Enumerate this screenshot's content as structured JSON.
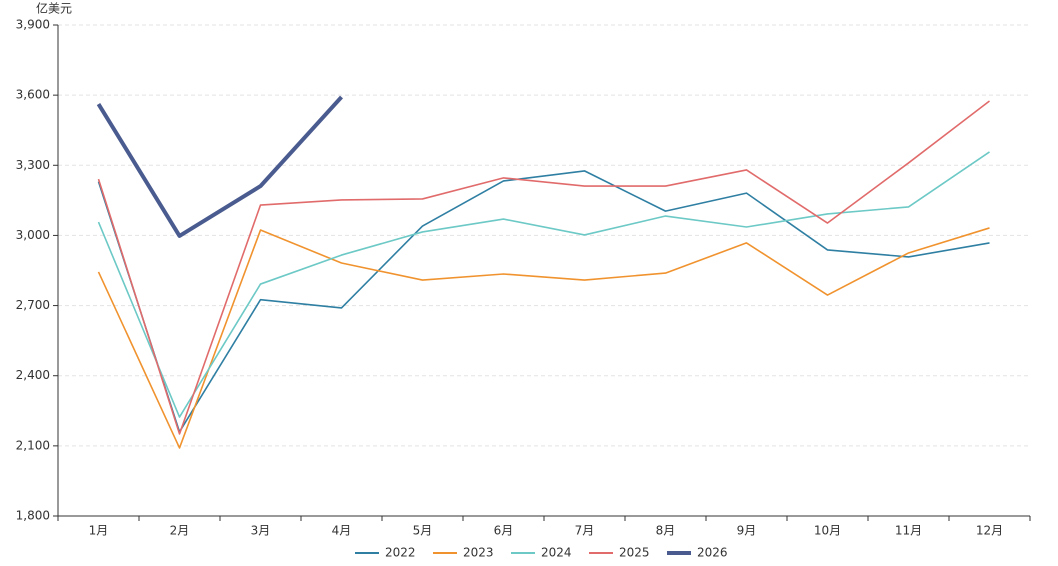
{
  "chart_data": {
    "type": "line",
    "y_unit": "亿美元",
    "categories": [
      "1月",
      "2月",
      "3月",
      "4月",
      "5月",
      "6月",
      "7月",
      "8月",
      "9月",
      "10月",
      "11月",
      "12月"
    ],
    "ylim": [
      1800,
      3900
    ],
    "yticks": [
      {
        "value": 1800,
        "label": "1,800"
      },
      {
        "value": 2100,
        "label": "2,100"
      },
      {
        "value": 2400,
        "label": "2,400"
      },
      {
        "value": 2700,
        "label": "2,700"
      },
      {
        "value": 3000,
        "label": "3,000"
      },
      {
        "value": 3300,
        "label": "3,300"
      },
      {
        "value": 3600,
        "label": "3,600"
      },
      {
        "value": 3900,
        "label": "3,900"
      }
    ],
    "grid": true,
    "series": [
      {
        "name": "2022",
        "color": "#2f7fa3",
        "values": [
          3230,
          2160,
          2725,
          2690,
          3040,
          3233,
          3276,
          3104,
          3181,
          2938,
          2908,
          2968
        ]
      },
      {
        "name": "2023",
        "color": "#f0932f",
        "values": [
          2844,
          2091,
          3023,
          2882,
          2809,
          2835,
          2809,
          2839,
          2968,
          2745,
          2925,
          3032
        ]
      },
      {
        "name": "2024",
        "color": "#6cc9c6",
        "values": [
          3057,
          2223,
          2792,
          2916,
          3015,
          3070,
          3002,
          3083,
          3036,
          3092,
          3122,
          3357
        ]
      },
      {
        "name": "2025",
        "color": "#e16b6b",
        "values": [
          3241,
          2151,
          3130,
          3152,
          3156,
          3246,
          3211,
          3211,
          3280,
          3053,
          3310,
          3575
        ]
      },
      {
        "name": "2026",
        "color": "#4a5b8f",
        "width": 4,
        "values": [
          3562,
          2998,
          3211,
          3592,
          null,
          null,
          null,
          null,
          null,
          null,
          null,
          null
        ]
      }
    ]
  }
}
